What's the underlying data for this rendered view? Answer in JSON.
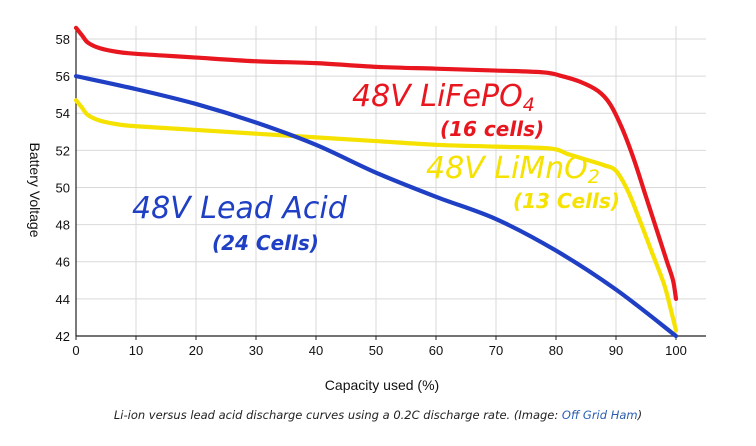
{
  "colors": {
    "lifepo4": "#e8171f",
    "limno2": "#f5e200",
    "lead_acid": "#1f3fc4",
    "grid": "#d9d9d9",
    "credit": "#2a5db0"
  },
  "chart_data": {
    "type": "line",
    "title": "",
    "xlabel": "Capacity used (%)",
    "ylabel": "Battery Voltage",
    "xlim": [
      0,
      105
    ],
    "ylim": [
      42,
      58.7
    ],
    "x_ticks": [
      0,
      10,
      20,
      30,
      40,
      50,
      60,
      70,
      80,
      90,
      100
    ],
    "y_ticks": [
      42,
      44,
      46,
      48,
      50,
      52,
      54,
      56,
      58
    ],
    "grid": true,
    "series": [
      {
        "name": "48V LiFePO4 (16 cells)",
        "color_key": "lifepo4",
        "x": [
          0,
          1,
          2,
          4,
          7,
          10,
          15,
          20,
          30,
          40,
          50,
          60,
          70,
          78,
          81,
          84,
          87,
          89,
          91,
          93,
          95,
          97,
          98.5,
          99.5,
          100
        ],
        "y": [
          58.6,
          58.2,
          57.8,
          57.5,
          57.3,
          57.2,
          57.1,
          57.0,
          56.8,
          56.7,
          56.5,
          56.4,
          56.3,
          56.2,
          56.0,
          55.7,
          55.2,
          54.5,
          53.2,
          51.5,
          49.5,
          47.5,
          46.0,
          45.0,
          44.0
        ]
      },
      {
        "name": "48V LiMnO2 (13 Cells)",
        "color_key": "limno2",
        "x": [
          0,
          1,
          2,
          4,
          7,
          10,
          20,
          30,
          40,
          50,
          60,
          70,
          79,
          82,
          85,
          88,
          90,
          92,
          94,
          96,
          98,
          99,
          100
        ],
        "y": [
          54.7,
          54.3,
          53.9,
          53.6,
          53.4,
          53.3,
          53.1,
          52.9,
          52.7,
          52.5,
          52.3,
          52.2,
          52.1,
          51.8,
          51.5,
          51.2,
          50.9,
          49.8,
          48.2,
          46.5,
          44.8,
          43.6,
          42.3
        ]
      },
      {
        "name": "48V Lead Acid (24 Cells)",
        "color_key": "lead_acid",
        "x": [
          0,
          10,
          20,
          30,
          40,
          50,
          60,
          70,
          80,
          90,
          100
        ],
        "y": [
          56.0,
          55.3,
          54.5,
          53.5,
          52.3,
          50.8,
          49.5,
          48.3,
          46.6,
          44.5,
          42.0
        ]
      }
    ],
    "annotations": [
      {
        "key": "lifepo4_title",
        "text": "48V LiFePO4",
        "color_key": "lifepo4"
      },
      {
        "key": "lifepo4_cells",
        "text": "(16 cells)",
        "color_key": "lifepo4"
      },
      {
        "key": "limno2_title",
        "text": "48V LiMnO2",
        "color_key": "limno2"
      },
      {
        "key": "limno2_cells",
        "text": "(13 Cells)",
        "color_key": "limno2"
      },
      {
        "key": "lead_title",
        "text": "48V Lead Acid",
        "color_key": "lead_acid"
      },
      {
        "key": "lead_cells",
        "text": "(24 Cells)",
        "color_key": "lead_acid"
      }
    ]
  },
  "caption": {
    "text": "Li-ion versus lead acid discharge curves using a 0.2C discharge rate. (Image: ",
    "credit": "Off Grid Ham",
    "close": ")"
  }
}
